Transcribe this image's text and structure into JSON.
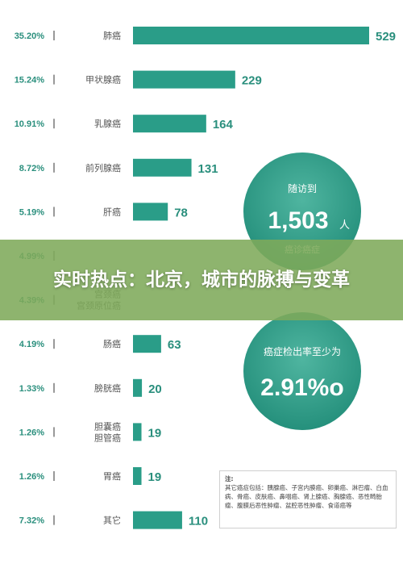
{
  "chart_data": {
    "type": "bar",
    "orientation": "horizontal",
    "categories": [
      "肺癌",
      "甲状腺癌",
      "乳腺癌",
      "前列腺癌",
      "肝癌",
      "",
      "宫颈癌\n宫颈原位癌",
      "肠癌",
      "膀胱癌",
      "胆囊癌\n胆管癌",
      "胃癌",
      "其它"
    ],
    "values": [
      529,
      229,
      164,
      131,
      78,
      null,
      null,
      63,
      20,
      19,
      19,
      110
    ],
    "value_labels": [
      "529",
      "229",
      "164",
      "131",
      "78",
      "",
      "",
      "63",
      "20",
      "19",
      "19",
      "110"
    ],
    "percentages": [
      "35.20%",
      "15.24%",
      "10.91%",
      "8.72%",
      "5.19%",
      "4.99%",
      "4.39%",
      "4.19%",
      "1.33%",
      "1.26%",
      "1.26%",
      "7.32%"
    ],
    "xlim": [
      0,
      529
    ],
    "bar_color": "#2a9d88"
  },
  "circles": [
    {
      "label": "随访到",
      "value": "1,503",
      "unit": "人",
      "sub": "癌诊癌症"
    },
    {
      "label": "癌症检出率至少为",
      "value": "2.91%o"
    }
  ],
  "note": {
    "title": "注:",
    "text": "其它癌症包括：胰腺癌、子宫内膜癌、卵巢癌、淋巴瘤、白血病、骨癌、皮肤癌、鼻咽癌、肾上腺癌、胸腺癌、恶性畸胎瘤、腹膜后恶性肿瘤、盆腔恶性肿瘤、食道癌等"
  },
  "banner": {
    "title": "实时热点：北京，城市的脉搏与变革"
  }
}
